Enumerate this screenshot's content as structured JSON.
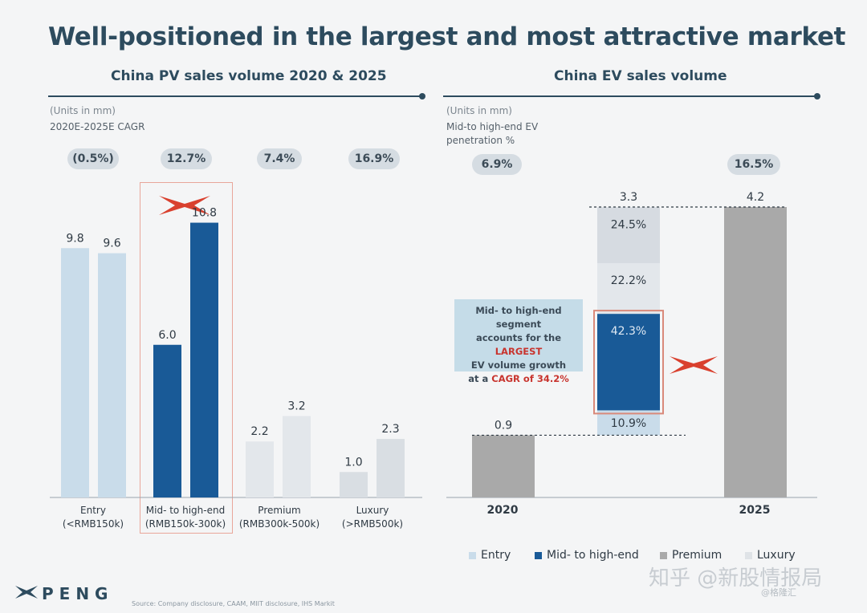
{
  "title": "Well-positioned in the largest and most attractive market",
  "left_panel": {
    "title": "China PV sales volume 2020 & 2025",
    "units": "(Units in mm)",
    "cagr_label": "2020E-2025E CAGR",
    "cagr_values": [
      "(0.5%)",
      "12.7%",
      "7.4%",
      "16.9%"
    ],
    "categories": [
      [
        "Entry",
        "(<RMB150k)"
      ],
      [
        "Mid- to high-end",
        "(RMB150k-300k)"
      ],
      [
        "Premium",
        "(RMB300k-500k)"
      ],
      [
        "Luxury (>RMB500k)",
        ""
      ]
    ]
  },
  "right_panel": {
    "title": "China EV sales volume",
    "units": "(Units in mm)",
    "penetration_label": "Mid-to high-end EV",
    "penetration_label2": "penetration %",
    "penetration_values": [
      "6.9%",
      "16.5%"
    ],
    "years": [
      "2020",
      "2025"
    ],
    "callout": {
      "line1": "Mid- to high-end segment",
      "line2a": "accounts for the ",
      "line2b": "LARGEST",
      "line3": "EV volume growth",
      "line4a": "at a ",
      "line4b": "CAGR of 34.2%"
    }
  },
  "legend": [
    "Entry",
    "Mid- to high-end",
    "Premium",
    "Luxury"
  ],
  "logo_text": "PENG",
  "source": "Source: Company disclosure, CAAM, MIIT disclosure, IHS Markit",
  "watermark": "知乎 @新股情报局",
  "watermark2": "@格隆汇",
  "colors": {
    "title": "#2d4b5e",
    "light_blue": "#c9dcea",
    "dark_blue": "#195a97",
    "gray": "#a9a9a9",
    "light_gray": "#dfe3e7",
    "accent_red": "#d9402e"
  },
  "chart_data": [
    {
      "type": "bar",
      "title": "China PV sales volume 2020 & 2025",
      "categories": [
        "Entry",
        "Mid- to high-end",
        "Premium",
        "Luxury (>RMB500k)"
      ],
      "series": [
        {
          "values": [
            9.8,
            6.0,
            2.2,
            1.0
          ]
        },
        {
          "values": [
            9.6,
            10.8,
            3.2,
            2.3
          ]
        }
      ],
      "data_labels": [
        [
          "9.8",
          "9.6"
        ],
        [
          "6.0",
          "10.8"
        ],
        [
          "2.2",
          "3.2"
        ],
        [
          "1.0",
          "2.3"
        ]
      ],
      "ylim": [
        0,
        11.5
      ]
    },
    {
      "type": "bar",
      "title": "China EV sales volume",
      "categories": [
        "2020",
        "2025"
      ],
      "values": [
        0.9,
        4.2
      ],
      "bridge_total": 3.3,
      "bridge_total_label": "3.3",
      "value_labels": [
        "0.9",
        "4.2"
      ],
      "bridge_segments": [
        {
          "name": "Entry",
          "share": 10.9,
          "label": "10.9%"
        },
        {
          "name": "Mid- to high-end",
          "share": 42.3,
          "label": "42.3%"
        },
        {
          "name": "Premium",
          "share": 22.2,
          "label": "22.2%"
        },
        {
          "name": "Luxury",
          "share": 24.5,
          "label": "24.5%"
        }
      ],
      "ylim": [
        0,
        4.6
      ]
    }
  ]
}
